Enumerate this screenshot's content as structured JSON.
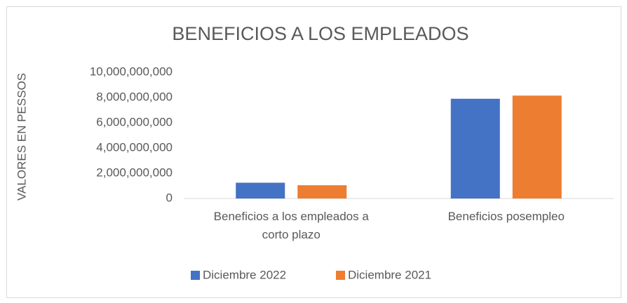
{
  "chart_data": {
    "type": "bar",
    "title": "BENEFICIOS A LOS EMPLEADOS",
    "y_label": "VALORES EN PESSOS",
    "categories": [
      "Beneficios a los empleados a corto plazo",
      "Beneficios posempleo"
    ],
    "series": [
      {
        "name": "Diciembre 2022",
        "color": "#4472c4",
        "values": [
          1250000000,
          7900000000
        ]
      },
      {
        "name": "Diciembre 2021",
        "color": "#ed7d31",
        "values": [
          1050000000,
          8150000000
        ]
      }
    ],
    "ylim": [
      0,
      10000000000
    ],
    "yticks": [
      0,
      {
        "value": 2000000000,
        "label": "2,000,000,000"
      },
      {
        "value": 4000000000,
        "label": "4,000,000,000"
      },
      {
        "value": 6000000000,
        "label": "6,000,000,000"
      },
      {
        "value": 8000000000,
        "label": "8,000,000,000"
      },
      {
        "value": 10000000000,
        "label": "10,000,000,000"
      }
    ],
    "grid": false,
    "legend": "bottom"
  }
}
